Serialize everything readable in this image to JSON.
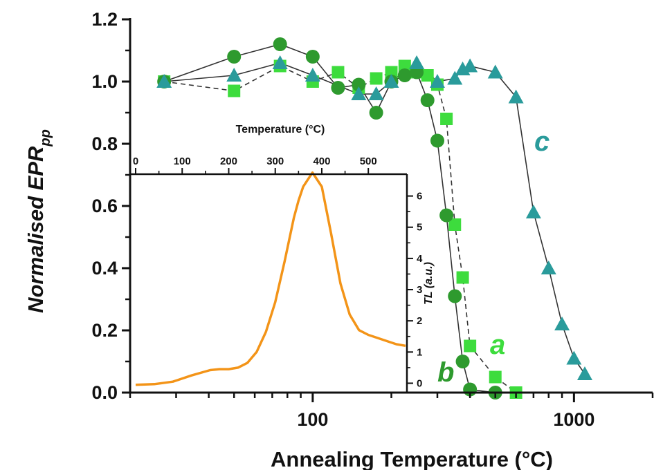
{
  "chart_data": [
    {
      "type": "line",
      "xlabel": "Annealing Temperature (°C)",
      "ylabel_main": "Normalised EPR",
      "ylabel_sub": "pp",
      "xscale": "log",
      "xlim": [
        20,
        2000
      ],
      "ylim": [
        0,
        1.2
      ],
      "xticks": [
        100,
        1000
      ],
      "xtick_labels": [
        "100",
        "1000"
      ],
      "yticks": [
        0.0,
        0.2,
        0.4,
        0.6,
        0.8,
        1.0,
        1.2
      ],
      "ytick_labels": [
        "0.0",
        "0.2",
        "0.4",
        "0.6",
        "0.8",
        "1.0",
        "1.2"
      ],
      "series": [
        {
          "name": "a",
          "marker": "square",
          "line": "dashed",
          "color": "#3ddc3d",
          "x": [
            27,
            50,
            75,
            100,
            125,
            150,
            175,
            200,
            225,
            250,
            275,
            300,
            325,
            350,
            375,
            400,
            500,
            600
          ],
          "y": [
            1.0,
            0.97,
            1.05,
            1.0,
            1.03,
            0.98,
            1.01,
            1.03,
            1.05,
            1.03,
            1.02,
            0.99,
            0.88,
            0.54,
            0.37,
            0.15,
            0.05,
            0.0
          ]
        },
        {
          "name": "b",
          "marker": "circle",
          "line": "solid",
          "color": "#2e9a2e",
          "x": [
            27,
            50,
            75,
            100,
            125,
            150,
            175,
            200,
            225,
            250,
            275,
            300,
            325,
            350,
            375,
            400,
            500
          ],
          "y": [
            1.0,
            1.08,
            1.12,
            1.08,
            0.98,
            0.99,
            0.9,
            1.0,
            1.02,
            1.03,
            0.94,
            0.81,
            0.57,
            0.31,
            0.1,
            0.01,
            0.0
          ]
        },
        {
          "name": "c",
          "marker": "triangle",
          "line": "solid",
          "color": "#2a9b9b",
          "x": [
            27,
            50,
            75,
            100,
            150,
            175,
            200,
            250,
            300,
            350,
            375,
            400,
            500,
            600,
            700,
            800,
            900,
            1000,
            1100
          ],
          "y": [
            1.0,
            1.02,
            1.06,
            1.02,
            0.96,
            0.96,
            1.0,
            1.06,
            1.0,
            1.01,
            1.04,
            1.05,
            1.03,
            0.95,
            0.58,
            0.4,
            0.22,
            0.11,
            0.06
          ]
        }
      ]
    },
    {
      "type": "line",
      "xlabel": "Temperature (°C)",
      "ylabel": "TL (a.u.)",
      "xlim": [
        0,
        580
      ],
      "ylim": [
        -0.3,
        6.7
      ],
      "xticks": [
        0,
        100,
        200,
        300,
        400,
        500
      ],
      "xtick_labels": [
        "0",
        "100",
        "200",
        "300",
        "400",
        "500"
      ],
      "yticks": [
        0,
        1,
        2,
        3,
        4,
        5,
        6
      ],
      "ytick_labels": [
        "0",
        "1",
        "2",
        "3",
        "4",
        "5",
        "6"
      ],
      "series": [
        {
          "color": "#f39418",
          "x": [
            0,
            40,
            80,
            120,
            160,
            180,
            200,
            220,
            240,
            260,
            280,
            300,
            320,
            340,
            350,
            360,
            380,
            400,
            420,
            440,
            460,
            480,
            500,
            520,
            540,
            560,
            580
          ],
          "y": [
            -0.05,
            -0.03,
            0.05,
            0.25,
            0.42,
            0.45,
            0.45,
            0.5,
            0.65,
            1.0,
            1.65,
            2.6,
            3.9,
            5.3,
            5.85,
            6.3,
            6.75,
            6.3,
            4.8,
            3.2,
            2.2,
            1.7,
            1.55,
            1.45,
            1.35,
            1.25,
            1.2
          ]
        }
      ]
    }
  ]
}
